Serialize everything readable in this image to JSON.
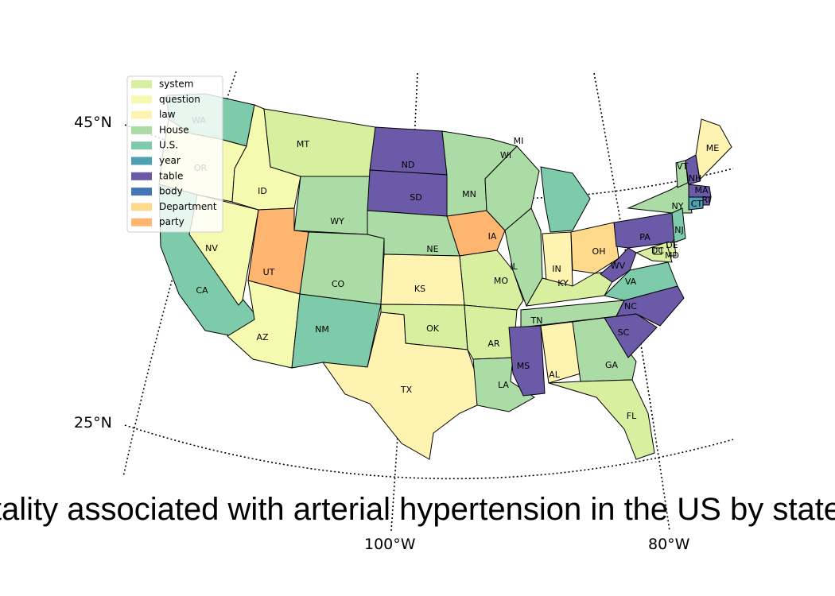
{
  "map": {
    "title": "Mortality associated with arterial hypertension in the US by state",
    "lat_labels": [
      "45°N",
      "25°N"
    ],
    "lon_labels": [
      "100°W",
      "80°W"
    ]
  },
  "legend": {
    "placement": "top-left",
    "items": [
      {
        "label": "system",
        "color": "#d8ef9f"
      },
      {
        "label": "question",
        "color": "#f4fab0"
      },
      {
        "label": "law",
        "color": "#fff3b2"
      },
      {
        "label": "House",
        "color": "#acdca6"
      },
      {
        "label": "U.S.",
        "color": "#7ecbab"
      },
      {
        "label": "year",
        "color": "#4da1b2"
      },
      {
        "label": "table",
        "color": "#6b5aa8"
      },
      {
        "label": "body",
        "color": "#4575b4"
      },
      {
        "label": "Department",
        "color": "#fed98b"
      },
      {
        "label": "party",
        "color": "#fdb56f"
      }
    ]
  },
  "states": [
    {
      "abbr": "WA",
      "category": "U.S."
    },
    {
      "abbr": "OR",
      "category": "question"
    },
    {
      "abbr": "CA",
      "category": "U.S."
    },
    {
      "abbr": "NV",
      "category": "question"
    },
    {
      "abbr": "ID",
      "category": "question"
    },
    {
      "abbr": "MT",
      "category": "system"
    },
    {
      "abbr": "WY",
      "category": "House"
    },
    {
      "abbr": "UT",
      "category": "party"
    },
    {
      "abbr": "AZ",
      "category": "question"
    },
    {
      "abbr": "CO",
      "category": "House"
    },
    {
      "abbr": "NM",
      "category": "U.S."
    },
    {
      "abbr": "ND",
      "category": "table"
    },
    {
      "abbr": "SD",
      "category": "table"
    },
    {
      "abbr": "NE",
      "category": "House"
    },
    {
      "abbr": "KS",
      "category": "law"
    },
    {
      "abbr": "OK",
      "category": "system"
    },
    {
      "abbr": "TX",
      "category": "law"
    },
    {
      "abbr": "MN",
      "category": "House"
    },
    {
      "abbr": "IA",
      "category": "party"
    },
    {
      "abbr": "MO",
      "category": "system"
    },
    {
      "abbr": "AR",
      "category": "system"
    },
    {
      "abbr": "LA",
      "category": "House"
    },
    {
      "abbr": "WI",
      "category": "House"
    },
    {
      "abbr": "IL",
      "category": "House"
    },
    {
      "abbr": "MI",
      "category": "U.S."
    },
    {
      "abbr": "IN",
      "category": "law"
    },
    {
      "abbr": "OH",
      "category": "Department"
    },
    {
      "abbr": "KY",
      "category": "system"
    },
    {
      "abbr": "TN",
      "category": "House"
    },
    {
      "abbr": "MS",
      "category": "table"
    },
    {
      "abbr": "AL",
      "category": "law"
    },
    {
      "abbr": "GA",
      "category": "House"
    },
    {
      "abbr": "FL",
      "category": "system"
    },
    {
      "abbr": "SC",
      "category": "table"
    },
    {
      "abbr": "NC",
      "category": "table"
    },
    {
      "abbr": "VA",
      "category": "U.S."
    },
    {
      "abbr": "WV",
      "category": "table"
    },
    {
      "abbr": "PA",
      "category": "table"
    },
    {
      "abbr": "NY",
      "category": "House"
    },
    {
      "abbr": "VT",
      "category": "House"
    },
    {
      "abbr": "NH",
      "category": "table"
    },
    {
      "abbr": "ME",
      "category": "law"
    },
    {
      "abbr": "MA",
      "category": "table"
    },
    {
      "abbr": "RI",
      "category": "table"
    },
    {
      "abbr": "CT",
      "category": "year"
    },
    {
      "abbr": "NJ",
      "category": "U.S."
    },
    {
      "abbr": "DE",
      "category": "system"
    },
    {
      "abbr": "MD",
      "category": "system"
    },
    {
      "abbr": "DC",
      "category": "system"
    }
  ]
}
